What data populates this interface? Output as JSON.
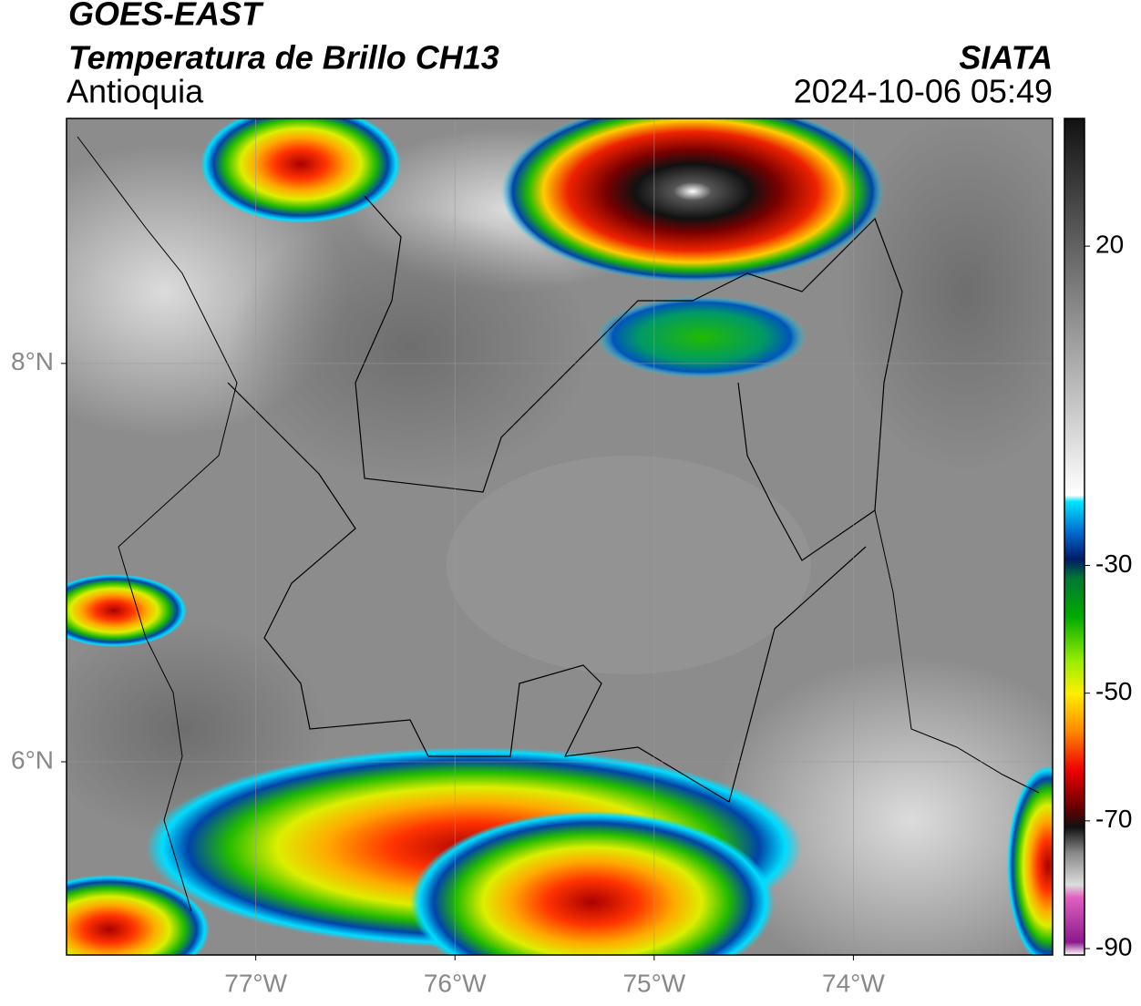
{
  "header": {
    "title": "GOES-EAST",
    "subtitle": "Temperatura de Brillo CH13",
    "region": "Antioquia",
    "source": "SIATA",
    "datetime": "2024-10-06 05:49"
  },
  "map": {
    "xlim": [
      -77.95,
      -73
    ],
    "ylim": [
      5.03,
      9.23
    ],
    "xticks": [
      {
        "value": -77,
        "label": "77°W"
      },
      {
        "value": -76,
        "label": "76°W"
      },
      {
        "value": -75,
        "label": "75°W"
      },
      {
        "value": -74,
        "label": "74°W"
      }
    ],
    "yticks": [
      {
        "value": 8,
        "label": "8°N"
      },
      {
        "value": 6,
        "label": "6°N"
      }
    ],
    "grid": true
  },
  "colorbar": {
    "lim": [
      -91,
      40
    ],
    "ticks": [
      20,
      -30,
      -50,
      -70,
      -90
    ],
    "stops": [
      {
        "value": -91,
        "color": "#ffffff"
      },
      {
        "value": -89,
        "color": "#8b1a8b"
      },
      {
        "value": -82,
        "color": "#e060c0"
      },
      {
        "value": -80,
        "color": "#dddddd"
      },
      {
        "value": -75,
        "color": "#888888"
      },
      {
        "value": -71,
        "color": "#111111"
      },
      {
        "value": -68,
        "color": "#660000"
      },
      {
        "value": -62,
        "color": "#ee0000"
      },
      {
        "value": -56,
        "color": "#ff8800"
      },
      {
        "value": -50,
        "color": "#ffee00"
      },
      {
        "value": -45,
        "color": "#99ee00"
      },
      {
        "value": -38,
        "color": "#00aa00"
      },
      {
        "value": -32,
        "color": "#007733"
      },
      {
        "value": -29,
        "color": "#001a66"
      },
      {
        "value": -25,
        "color": "#0066cc"
      },
      {
        "value": -20,
        "color": "#00e5ff"
      },
      {
        "value": -19,
        "color": "#ffffff"
      },
      {
        "value": 40,
        "color": "#111111"
      }
    ]
  }
}
